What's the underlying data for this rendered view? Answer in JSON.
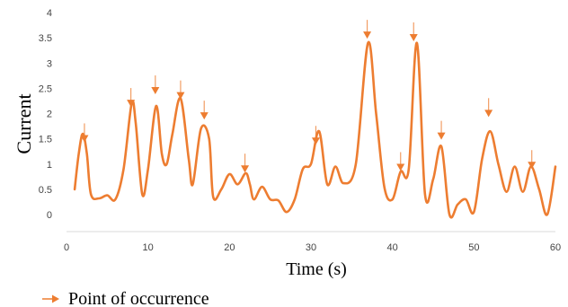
{
  "chart_data": {
    "type": "line",
    "title": "",
    "xlabel": "Time (s)",
    "ylabel": "Current",
    "xlim": [
      0,
      60
    ],
    "ylim": [
      0,
      4
    ],
    "xticks": [
      "0",
      "10",
      "20",
      "30",
      "40",
      "50",
      "60"
    ],
    "yticks": [
      "0",
      "0.5",
      "1",
      "1.5",
      "2",
      "2.5",
      "3",
      "3.5",
      "4"
    ],
    "grid": false,
    "legend_position": "bottom-left",
    "colors": {
      "line": "#ED7D31",
      "axis": "#d9d9d9"
    },
    "series": [
      {
        "values": [
          [
            1.0,
            0.5
          ],
          [
            1.5,
            1.2
          ],
          [
            2.0,
            1.6
          ],
          [
            2.5,
            1.2
          ],
          [
            3.0,
            0.4
          ],
          [
            4.0,
            0.32
          ],
          [
            5.0,
            0.38
          ],
          [
            6.0,
            0.3
          ],
          [
            7.0,
            0.9
          ],
          [
            8.0,
            2.2
          ],
          [
            8.5,
            1.8
          ],
          [
            9.3,
            0.4
          ],
          [
            10.0,
            0.9
          ],
          [
            11.0,
            2.15
          ],
          [
            11.7,
            1.2
          ],
          [
            12.3,
            1.0
          ],
          [
            13.0,
            1.6
          ],
          [
            14.0,
            2.3
          ],
          [
            15.0,
            1.1
          ],
          [
            15.5,
            0.6
          ],
          [
            16.5,
            1.7
          ],
          [
            17.5,
            1.5
          ],
          [
            18.0,
            0.35
          ],
          [
            19.0,
            0.5
          ],
          [
            20.0,
            0.8
          ],
          [
            21.0,
            0.6
          ],
          [
            22.0,
            0.82
          ],
          [
            22.5,
            0.6
          ],
          [
            23.0,
            0.3
          ],
          [
            24.0,
            0.55
          ],
          [
            25.0,
            0.3
          ],
          [
            26.0,
            0.28
          ],
          [
            27.0,
            0.05
          ],
          [
            28.0,
            0.3
          ],
          [
            29.0,
            0.9
          ],
          [
            30.0,
            1.0
          ],
          [
            31.0,
            1.65
          ],
          [
            32.0,
            0.6
          ],
          [
            33.0,
            0.95
          ],
          [
            34.0,
            0.62
          ],
          [
            35.5,
            1.0
          ],
          [
            37.0,
            3.4
          ],
          [
            38.0,
            2.0
          ],
          [
            39.0,
            0.55
          ],
          [
            40.0,
            0.3
          ],
          [
            41.0,
            0.85
          ],
          [
            42.0,
            0.9
          ],
          [
            43.0,
            3.4
          ],
          [
            44.0,
            0.4
          ],
          [
            45.0,
            0.7
          ],
          [
            46.0,
            1.35
          ],
          [
            47.0,
            0.0
          ],
          [
            48.0,
            0.2
          ],
          [
            49.0,
            0.3
          ],
          [
            50.0,
            0.05
          ],
          [
            51.0,
            1.1
          ],
          [
            52.0,
            1.65
          ],
          [
            53.0,
            1.0
          ],
          [
            54.0,
            0.45
          ],
          [
            55.0,
            0.95
          ],
          [
            56.0,
            0.45
          ],
          [
            57.0,
            0.95
          ],
          [
            58.0,
            0.5
          ],
          [
            59.0,
            0.0
          ],
          [
            60.0,
            0.95
          ]
        ]
      }
    ],
    "occurrences": [
      [
        2.2,
        1.45
      ],
      [
        7.9,
        2.15
      ],
      [
        10.9,
        2.4
      ],
      [
        14.0,
        2.3
      ],
      [
        16.9,
        1.9
      ],
      [
        21.9,
        0.85
      ],
      [
        30.6,
        1.4
      ],
      [
        36.9,
        3.5
      ],
      [
        41.0,
        0.88
      ],
      [
        42.6,
        3.45
      ],
      [
        46.0,
        1.5
      ],
      [
        51.8,
        1.95
      ],
      [
        57.1,
        0.92
      ]
    ],
    "legend": [
      {
        "label": "Point of occurrence",
        "marker": "down-arrow"
      }
    ]
  }
}
